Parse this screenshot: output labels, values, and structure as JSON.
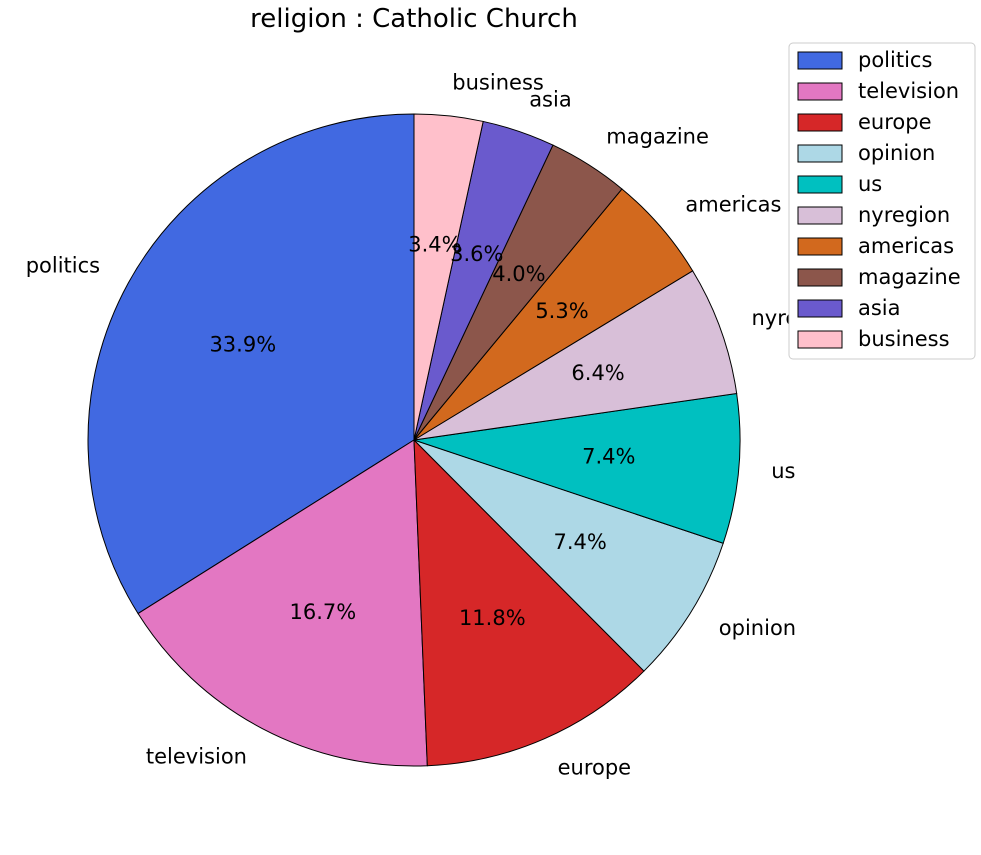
{
  "chart_data": {
    "type": "pie",
    "title": "religion : Catholic Church",
    "slices": [
      {
        "label": "politics",
        "value": 33.9,
        "pct_label": "33.9%",
        "color": "#4169e1"
      },
      {
        "label": "television",
        "value": 16.7,
        "pct_label": "16.7%",
        "color": "#e377c2"
      },
      {
        "label": "europe",
        "value": 11.8,
        "pct_label": "11.8%",
        "color": "#d62728"
      },
      {
        "label": "opinion",
        "value": 7.4,
        "pct_label": "7.4%",
        "color": "#add8e6"
      },
      {
        "label": "us",
        "value": 7.4,
        "pct_label": "7.4%",
        "color": "#00c0c0"
      },
      {
        "label": "nyregion",
        "value": 6.4,
        "pct_label": "6.4%",
        "color": "#d8bfd8"
      },
      {
        "label": "americas",
        "value": 5.3,
        "pct_label": "5.3%",
        "color": "#d2691e"
      },
      {
        "label": "magazine",
        "value": 4.0,
        "pct_label": "4.0%",
        "color": "#8c564b"
      },
      {
        "label": "asia",
        "value": 3.6,
        "pct_label": "3.6%",
        "color": "#6a5acd"
      },
      {
        "label": "business",
        "value": 3.4,
        "pct_label": "3.4%",
        "color": "#ffc0cb"
      }
    ],
    "start_angle_deg": 90,
    "direction": "counterclockwise",
    "legend_position": "top-right"
  }
}
